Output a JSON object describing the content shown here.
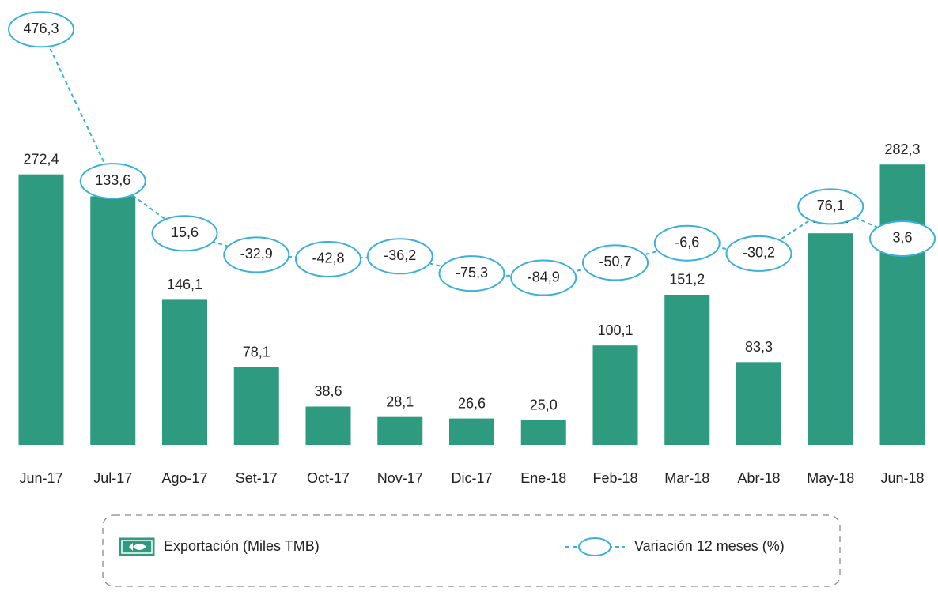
{
  "chart_data": {
    "type": "bar",
    "categories": [
      "Jun-17",
      "Jul-17",
      "Ago-17",
      "Set-17",
      "Oct-17",
      "Nov-17",
      "Dic-17",
      "Ene-18",
      "Feb-18",
      "Mar-18",
      "Abr-18",
      "May-18",
      "Jun-18"
    ],
    "series": [
      {
        "name": "Exportación (Miles TMB)",
        "type": "bar",
        "color": "#2e9a80",
        "values": [
          272.4,
          250.3,
          146.1,
          78.1,
          38.6,
          28.1,
          26.6,
          25.0,
          100.1,
          151.2,
          83.3,
          213.1,
          282.3
        ],
        "value_labels": [
          "272,4",
          "250,3",
          "146,1",
          "78,1",
          "38,6",
          "28,1",
          "26,6",
          "25,0",
          "100,1",
          "151,2",
          "83,3",
          "213,1",
          "282,3"
        ]
      },
      {
        "name": "Variación 12 meses (%)",
        "type": "line",
        "axis": "y2",
        "color": "#3ab0da",
        "values": [
          476.3,
          133.6,
          15.6,
          -32.9,
          -42.8,
          -36.2,
          -75.3,
          -84.9,
          -50.7,
          -6.6,
          -30.2,
          76.1,
          3.6
        ],
        "value_labels": [
          "476,3",
          "133,6",
          "15,6",
          "-32,9",
          "-42,8",
          "-36,2",
          "-75,3",
          "-84,9",
          "-50,7",
          "-6,6",
          "-30,2",
          "76,1",
          "3,6"
        ]
      }
    ],
    "ylim": [
      0,
      300
    ],
    "y2lim": [
      -100,
      500
    ]
  }
}
